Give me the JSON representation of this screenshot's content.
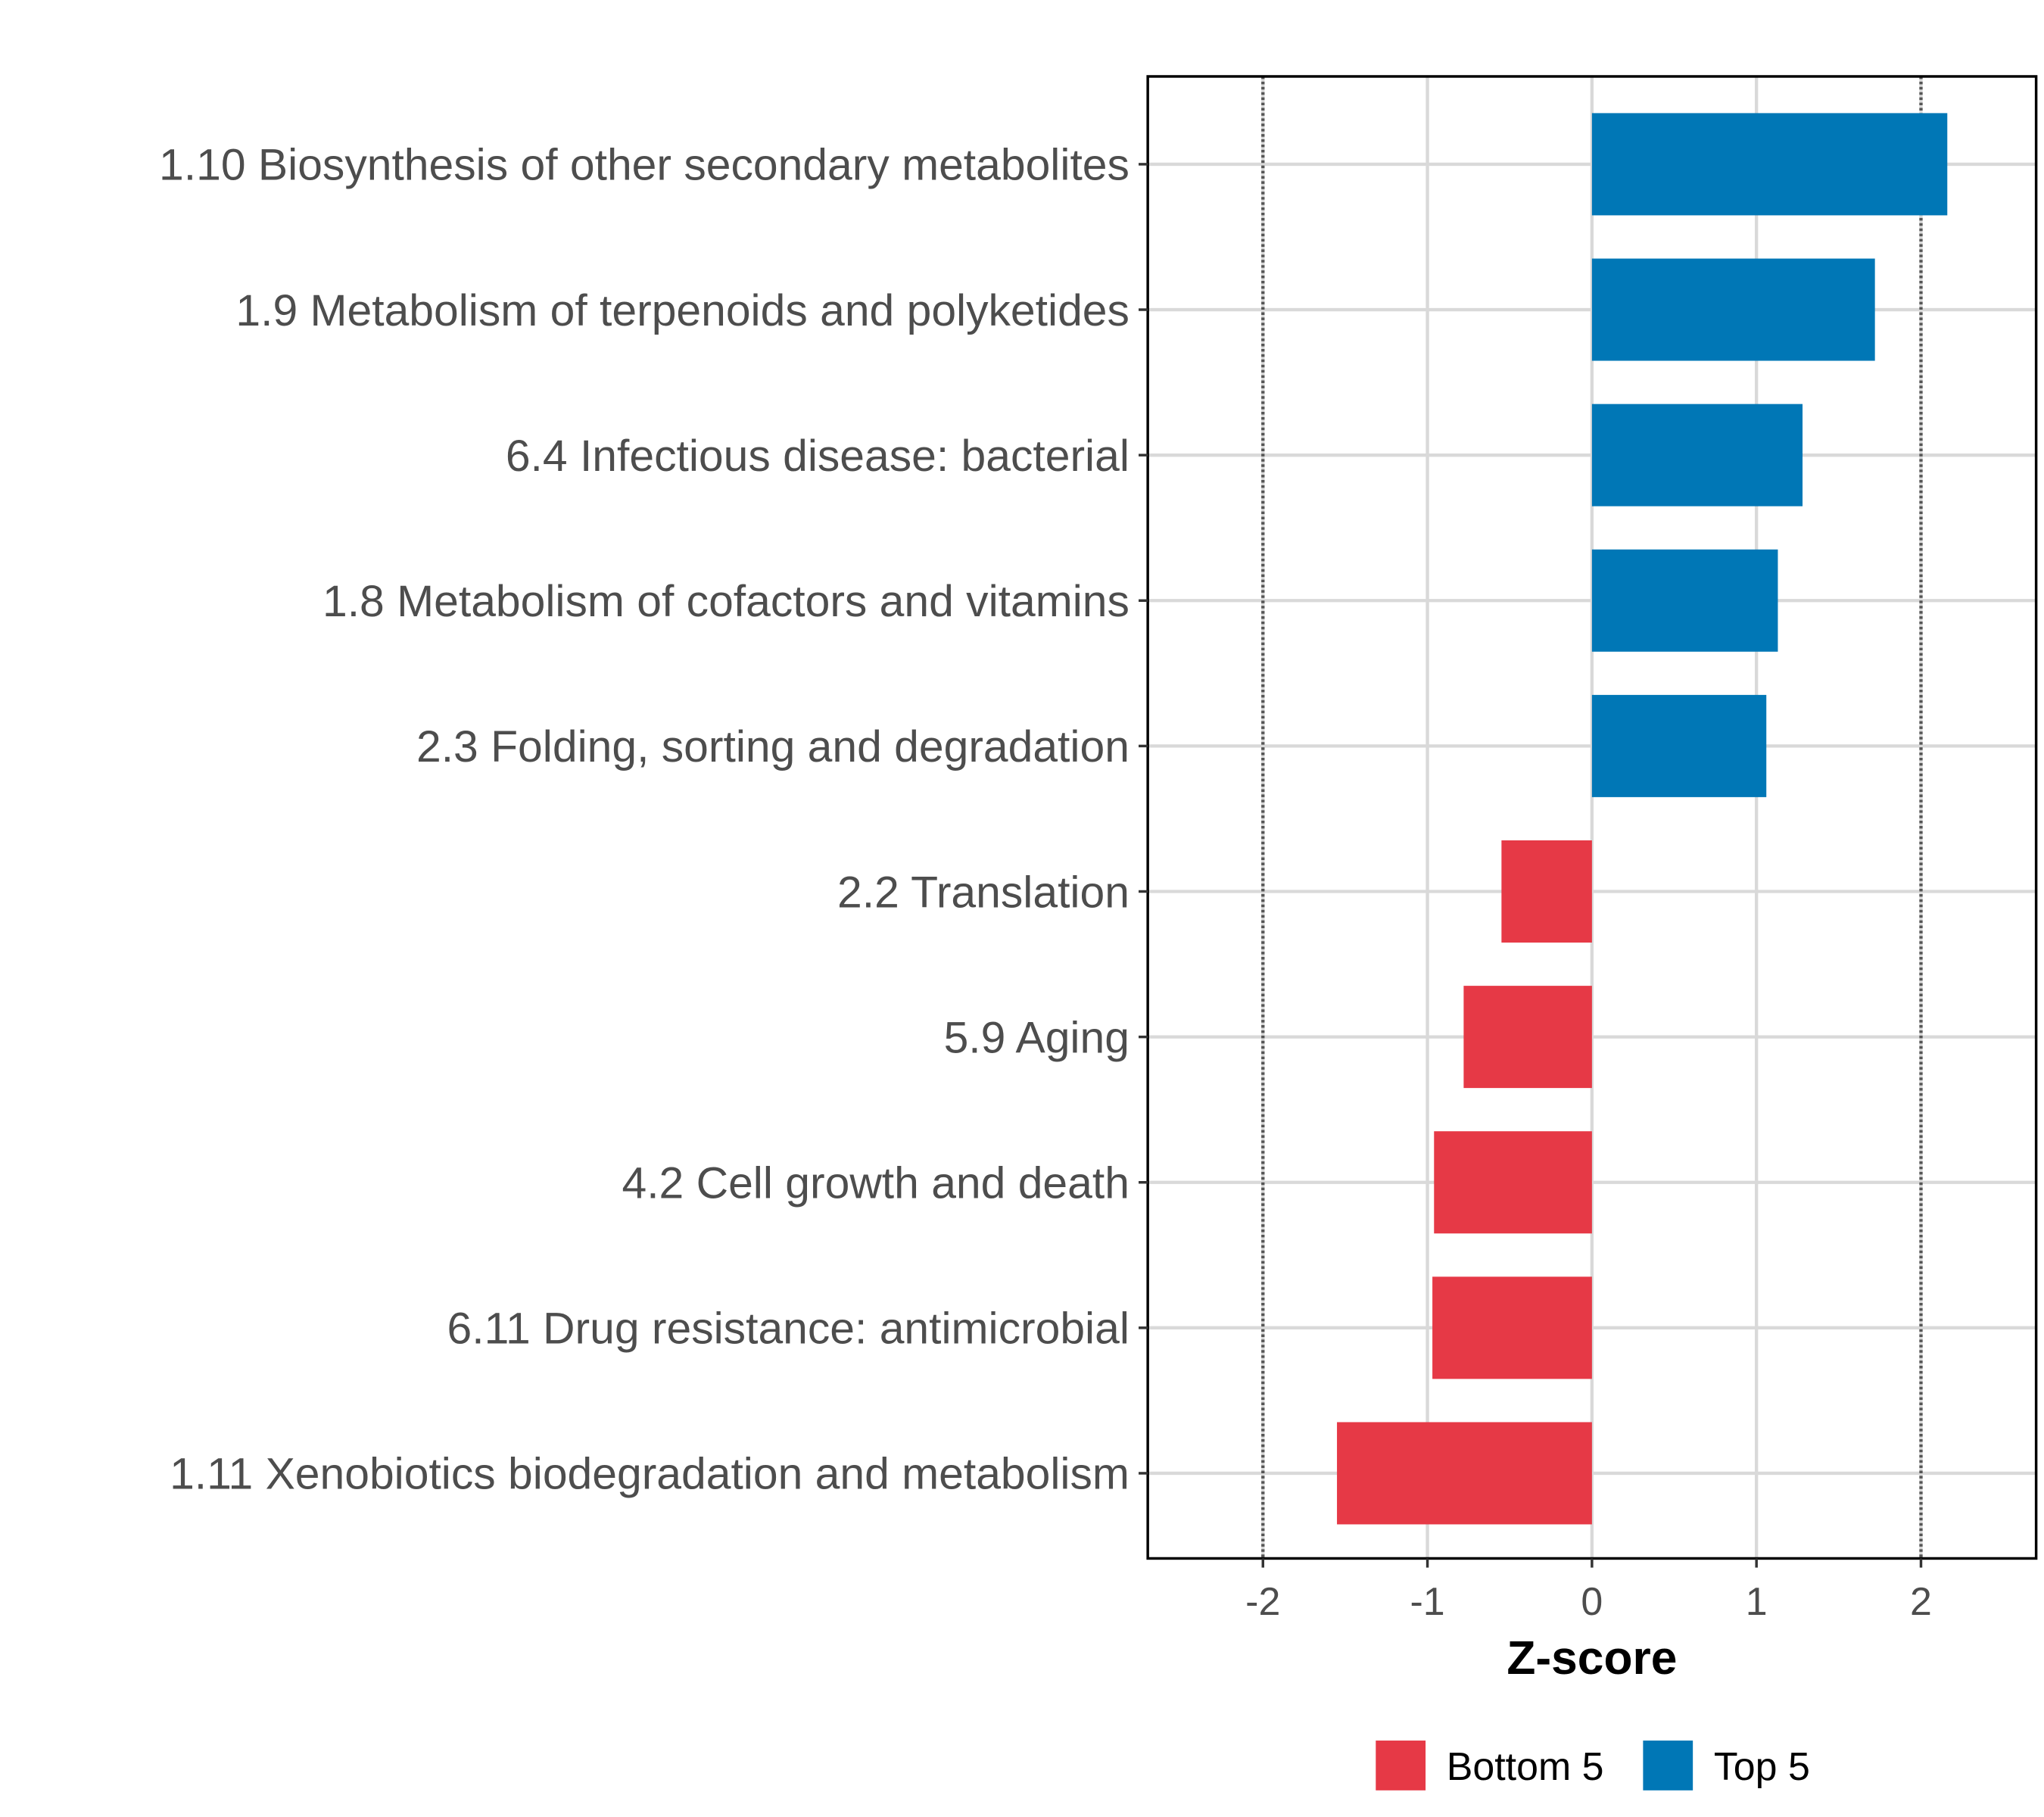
{
  "chart_data": {
    "type": "bar",
    "orientation": "horizontal",
    "title": "",
    "xlabel": "Z-score",
    "ylabel": "",
    "xlim": [
      -2.7,
      2.7
    ],
    "xticks": [
      -2,
      -1,
      0,
      1,
      2
    ],
    "xtick_labels": [
      "-2",
      "-1",
      "0",
      "1",
      "2"
    ],
    "reference_lines": [
      -2,
      2
    ],
    "grid": true,
    "categories": [
      "1.10 Biosynthesis of other secondary metabolites",
      "1.9 Metabolism of terpenoids and polyketides",
      "6.4 Infectious disease: bacterial",
      "1.8 Metabolism of cofactors and vitamins",
      "2.3 Folding, sorting and degradation",
      "2.2 Translation",
      "5.9 Aging",
      "4.2 Cell growth and death",
      "6.11 Drug resistance: antimicrobial",
      "1.11 Xenobiotics biodegradation and metabolism"
    ],
    "values": [
      2.16,
      1.72,
      1.28,
      1.13,
      1.06,
      -0.55,
      -0.78,
      -0.96,
      -0.97,
      -1.55
    ],
    "groups": [
      "Top 5",
      "Top 5",
      "Top 5",
      "Top 5",
      "Top 5",
      "Bottom 5",
      "Bottom 5",
      "Bottom 5",
      "Bottom 5",
      "Bottom 5"
    ],
    "legend": {
      "position": "bottom",
      "entries": [
        {
          "label": "Bottom 5",
          "color": "#e63946"
        },
        {
          "label": "Top 5",
          "color": "#0077b6"
        }
      ]
    }
  }
}
